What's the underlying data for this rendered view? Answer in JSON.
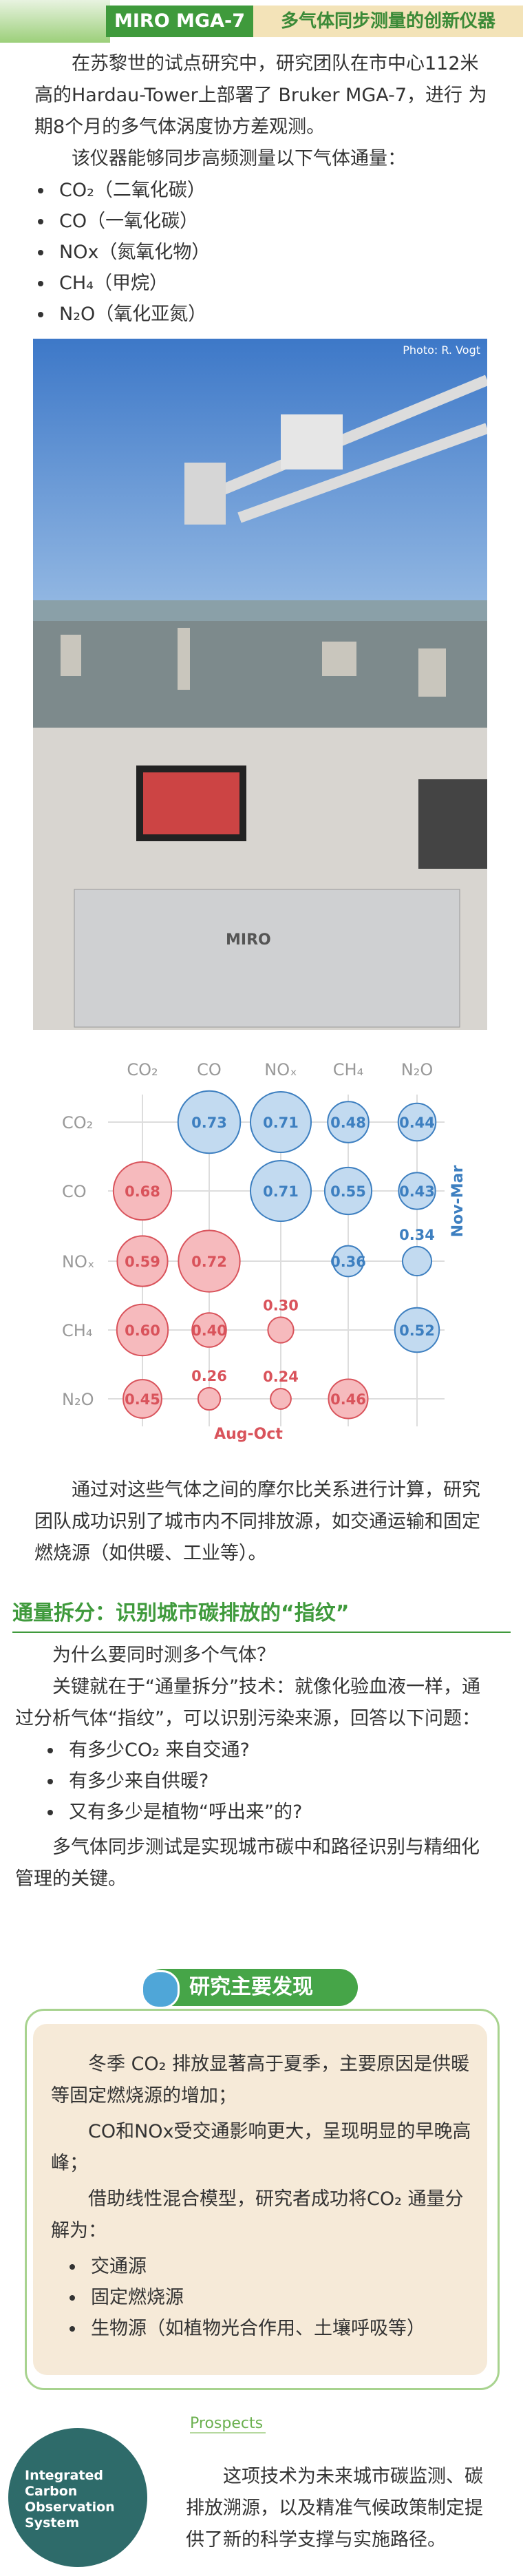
{
  "header": {
    "tag": "MIRO MGA-7",
    "title": "多气体同步测量的创新仪器"
  },
  "intro": {
    "paragraph": "在苏黎世的试点研究中，研究团队在市中心112米高的Hardau-Tower上部署了 Bruker MGA-7，进行 为期8个月的多气体涡度协方差观测。",
    "lead": "该仪器能够同步高频测量以下气体通量：",
    "gases": [
      "CO₂（二氧化碳）",
      "CO（一氧化碳）",
      "NOx（氮氧化物）",
      "CH₄（甲烷）",
      "N₂O（氧化亚氮）"
    ]
  },
  "photo": {
    "credit": "Photo: R. Vogt",
    "brand": "MIRO"
  },
  "chart_data": {
    "type": "bubble-matrix",
    "labels": [
      "CO₂",
      "CO",
      "NOₓ",
      "CH₄",
      "N₂O"
    ],
    "series": [
      {
        "name": "Nov-Mar",
        "color": "#3d7fc0",
        "values": [
          [
            null,
            0.73,
            0.71,
            0.48,
            0.44
          ],
          [
            null,
            null,
            0.71,
            0.55,
            0.43
          ],
          [
            null,
            null,
            null,
            0.36,
            0.34
          ],
          [
            null,
            null,
            null,
            null,
            0.52
          ],
          [
            null,
            null,
            null,
            null,
            null
          ]
        ],
        "value_labels": [
          [
            null,
            "0.73",
            "0.71",
            "0.48",
            "0.44"
          ],
          [
            null,
            null,
            "0.71",
            "0.55",
            "0.43"
          ],
          [
            null,
            null,
            null,
            "0.36",
            "0.34"
          ],
          [
            null,
            null,
            null,
            null,
            "0.52"
          ],
          [
            null,
            null,
            null,
            null,
            null
          ]
        ]
      },
      {
        "name": "Aug-Oct",
        "color": "#d9535b",
        "values": [
          [
            null,
            null,
            null,
            null,
            null
          ],
          [
            0.68,
            null,
            null,
            null,
            null
          ],
          [
            0.59,
            0.72,
            null,
            null,
            null
          ],
          [
            0.6,
            0.4,
            0.3,
            null,
            null
          ],
          [
            0.45,
            0.26,
            0.24,
            0.46,
            null
          ]
        ],
        "value_labels": [
          [
            null,
            null,
            null,
            null,
            null
          ],
          [
            "0.68",
            null,
            null,
            null,
            null
          ],
          [
            "0.59",
            "0.72",
            null,
            null,
            null
          ],
          [
            "0.60",
            "0.40",
            "0.30",
            null,
            null
          ],
          [
            "0.45",
            "0.26",
            "0.24",
            "0.46",
            null
          ]
        ]
      }
    ]
  },
  "analysis": {
    "paragraph": "通过对这些气体之间的摩尔比关系进行计算，研究团队成功识别了城市内不同排放源，如交通运输和固定燃烧源（如供暖、工业等）。"
  },
  "flux": {
    "heading": "通量拆分：识别城市碳排放的“指纹”",
    "question": "为什么要同时测多个气体？",
    "paragraph": "关键就在于“通量拆分”技术：就像化验血液一样，通过分析气体“指纹”，可以识别污染来源，回答以下问题：",
    "bullets": [
      "有多少CO₂ 来自交通?",
      "有多少来自供暖?",
      "又有多少是植物“呼出来”的?"
    ],
    "conclusion": "多气体同步测试是实现城市碳中和路径识别与精细化管理的关键。"
  },
  "findings": {
    "title": "研究主要发现",
    "paragraphs": [
      "冬季 CO₂ 排放显著高于夏季，主要原因是供暖等固定燃烧源的增加；",
      "CO和NOx受交通影响更大，呈现明显的早晚高峰；",
      "借助线性混合模型，研究者成功将CO₂ 通量分解为："
    ],
    "bullets": [
      "交通源",
      "固定燃烧源",
      "生物源（如植物光合作用、土壤呼吸等）"
    ]
  },
  "prospects": {
    "label": "Prospects",
    "logo": [
      "Integrated",
      "Carbon",
      "Observation",
      "System"
    ],
    "paragraph": "这项技术为未来城市碳监测、碳排放溯源，以及精准气候政策制定提供了新的科学支撑与实施路径。"
  }
}
